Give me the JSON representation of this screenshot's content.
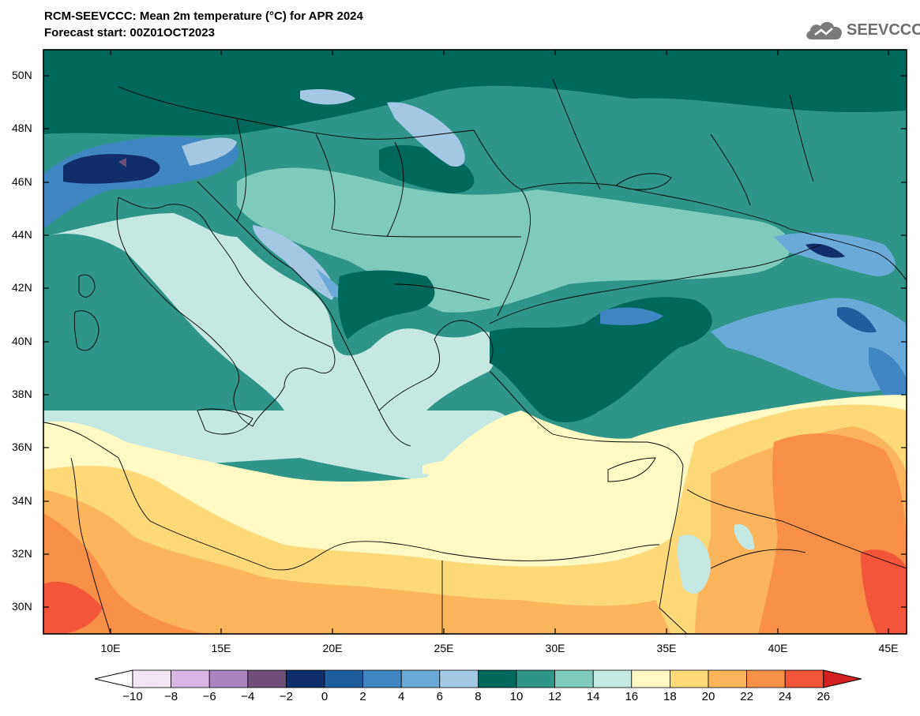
{
  "title": {
    "line1": "RCM-SEEVCCC: Mean 2m temperature (°C) for APR 2024",
    "line2": "Forecast start: 00Z01OCT2023"
  },
  "logo": {
    "text": "SEEVCCC",
    "icon": "cloud-logo-icon"
  },
  "map": {
    "lon_range": [
      6.9,
      45.7
    ],
    "lat_range": [
      29.0,
      51.0
    ],
    "lon_ticks": [
      "10E",
      "15E",
      "20E",
      "25E",
      "30E",
      "35E",
      "40E",
      "45E"
    ],
    "lat_ticks": [
      "50N",
      "48N",
      "46N",
      "44N",
      "42N",
      "40N",
      "38N",
      "36N",
      "34N",
      "32N",
      "30N"
    ],
    "variable": "Mean 2m temperature",
    "units": "°C"
  },
  "colorbar": {
    "labels": [
      "-10",
      "-8",
      "-6",
      "-4",
      "-2",
      "0",
      "2",
      "4",
      "6",
      "8",
      "10",
      "12",
      "14",
      "16",
      "18",
      "20",
      "22",
      "24",
      "26"
    ],
    "colors": [
      "#f2e6f5",
      "#d8b6e3",
      "#a885bf",
      "#6e4f77",
      "#0f2e6b",
      "#1f5e9e",
      "#3f86c3",
      "#6aaad8",
      "#a2c8e3",
      "#00685a",
      "#2f9588",
      "#7fcbbb",
      "#c5e8e3",
      "#fff9c4",
      "#fdd97a",
      "#fbb55d",
      "#f8904a",
      "#f2553a"
    ],
    "under_color": "#ffffff",
    "over_color": "#d42020"
  }
}
